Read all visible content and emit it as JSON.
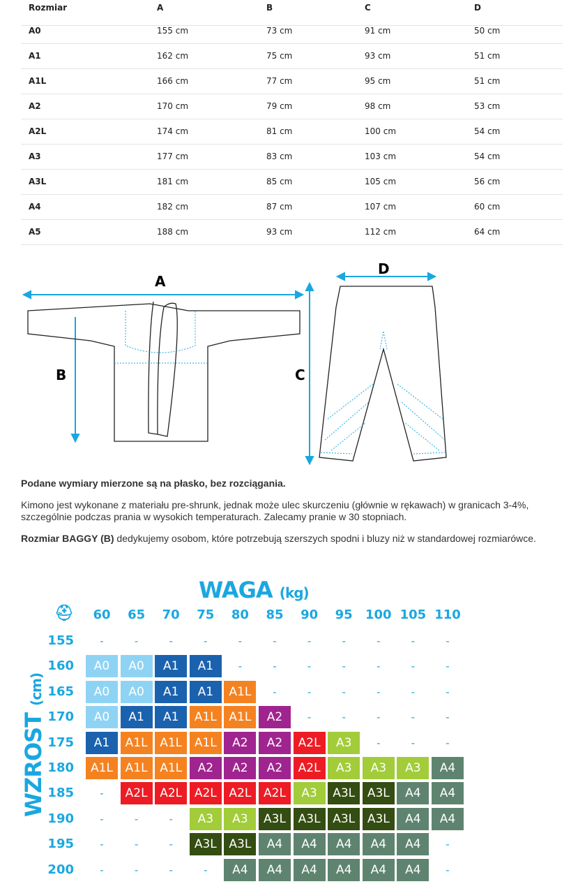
{
  "table": {
    "headers": [
      "Rozmiar",
      "A",
      "B",
      "C",
      "D"
    ],
    "rows": [
      [
        "A0",
        "155 cm",
        "73 cm",
        "91 cm",
        "50 cm"
      ],
      [
        "A1",
        "162 cm",
        "75 cm",
        "93 cm",
        "51 cm"
      ],
      [
        "A1L",
        "166 cm",
        "77 cm",
        "95 cm",
        "51 cm"
      ],
      [
        "A2",
        "170 cm",
        "79 cm",
        "98 cm",
        "53 cm"
      ],
      [
        "A2L",
        "174 cm",
        "81 cm",
        "100 cm",
        "54 cm"
      ],
      [
        "A3",
        "177 cm",
        "83 cm",
        "103 cm",
        "54 cm"
      ],
      [
        "A3L",
        "181 cm",
        "85 cm",
        "105 cm",
        "56 cm"
      ],
      [
        "A4",
        "182 cm",
        "87 cm",
        "107 cm",
        "60 cm"
      ],
      [
        "A5",
        "188 cm",
        "93 cm",
        "112 cm",
        "64 cm"
      ]
    ]
  },
  "diagram": {
    "labels": {
      "a": "A",
      "b": "B",
      "c": "C",
      "d": "D"
    },
    "accent": "#1aa7e0"
  },
  "notes": {
    "bold_line": "Podane wymiary mierzone są na płasko, bez rozciągania.",
    "shrink": "Kimono jest wykonane z materiału pre-shrunk, jednak może ulec skurczeniu (głównie w rękawach) w granicach 3-4%, szczególnie podczas prania w wysokich temperaturach. Zalecamy pranie w 30 stopniach.",
    "baggy_bold": "Rozmiar BAGGY (B)",
    "baggy_rest": " dedykujemy osobom, które potrzebują szerszych spodni i bluzy niż w standardowej rozmiarówce."
  },
  "size_chart": {
    "title": "WAGA",
    "title_unit": "(kg)",
    "y_title": "WZROST",
    "y_unit": "(cm)",
    "icon": "helmet-logo-icon",
    "weights": [
      "60",
      "65",
      "70",
      "75",
      "80",
      "85",
      "90",
      "95",
      "100",
      "105",
      "110"
    ],
    "heights": [
      "155",
      "160",
      "165",
      "170",
      "175",
      "180",
      "185",
      "190",
      "195",
      "200"
    ],
    "grid": [
      [
        "-",
        "-",
        "-",
        "-",
        "-",
        "-",
        "-",
        "-",
        "-",
        "-",
        "-"
      ],
      [
        "A0",
        "A0",
        "A1",
        "A1",
        "-",
        "-",
        "-",
        "-",
        "-",
        "-",
        "-"
      ],
      [
        "A0",
        "A0",
        "A1",
        "A1",
        "A1L",
        "-",
        "-",
        "-",
        "-",
        "-",
        "-"
      ],
      [
        "A0",
        "A1",
        "A1",
        "A1L",
        "A1L",
        "A2",
        "-",
        "-",
        "-",
        "-",
        "-"
      ],
      [
        "A1",
        "A1L",
        "A1L",
        "A1L",
        "A2",
        "A2",
        "A2L",
        "A3",
        "-",
        "-",
        "-"
      ],
      [
        "A1L",
        "A1L",
        "A1L",
        "A2",
        "A2",
        "A2",
        "A2L",
        "A3",
        "A3",
        "A3",
        "A4"
      ],
      [
        "-",
        "A2L",
        "A2L",
        "A2L",
        "A2L",
        "A2L",
        "A3",
        "A3L",
        "A3L",
        "A4",
        "A4"
      ],
      [
        "-",
        "-",
        "-",
        "A3",
        "A3",
        "A3L",
        "A3L",
        "A3L",
        "A3L",
        "A4",
        "A4"
      ],
      [
        "-",
        "-",
        "-",
        "A3L",
        "A3L",
        "A4",
        "A4",
        "A4",
        "A4",
        "A4",
        "-"
      ],
      [
        "-",
        "-",
        "-",
        "-",
        "A4",
        "A4",
        "A4",
        "A4",
        "A4",
        "A4",
        "-"
      ]
    ],
    "colors": {
      "A0": "#8fd3f4",
      "A1": "#1b62ae",
      "A1L": "#f58220",
      "A2": "#a0248f",
      "A2L": "#ed1c24",
      "A3": "#a2cc3a",
      "A3L": "#344d12",
      "A4": "#5e8470",
      "text": "#1aa7e0"
    }
  }
}
